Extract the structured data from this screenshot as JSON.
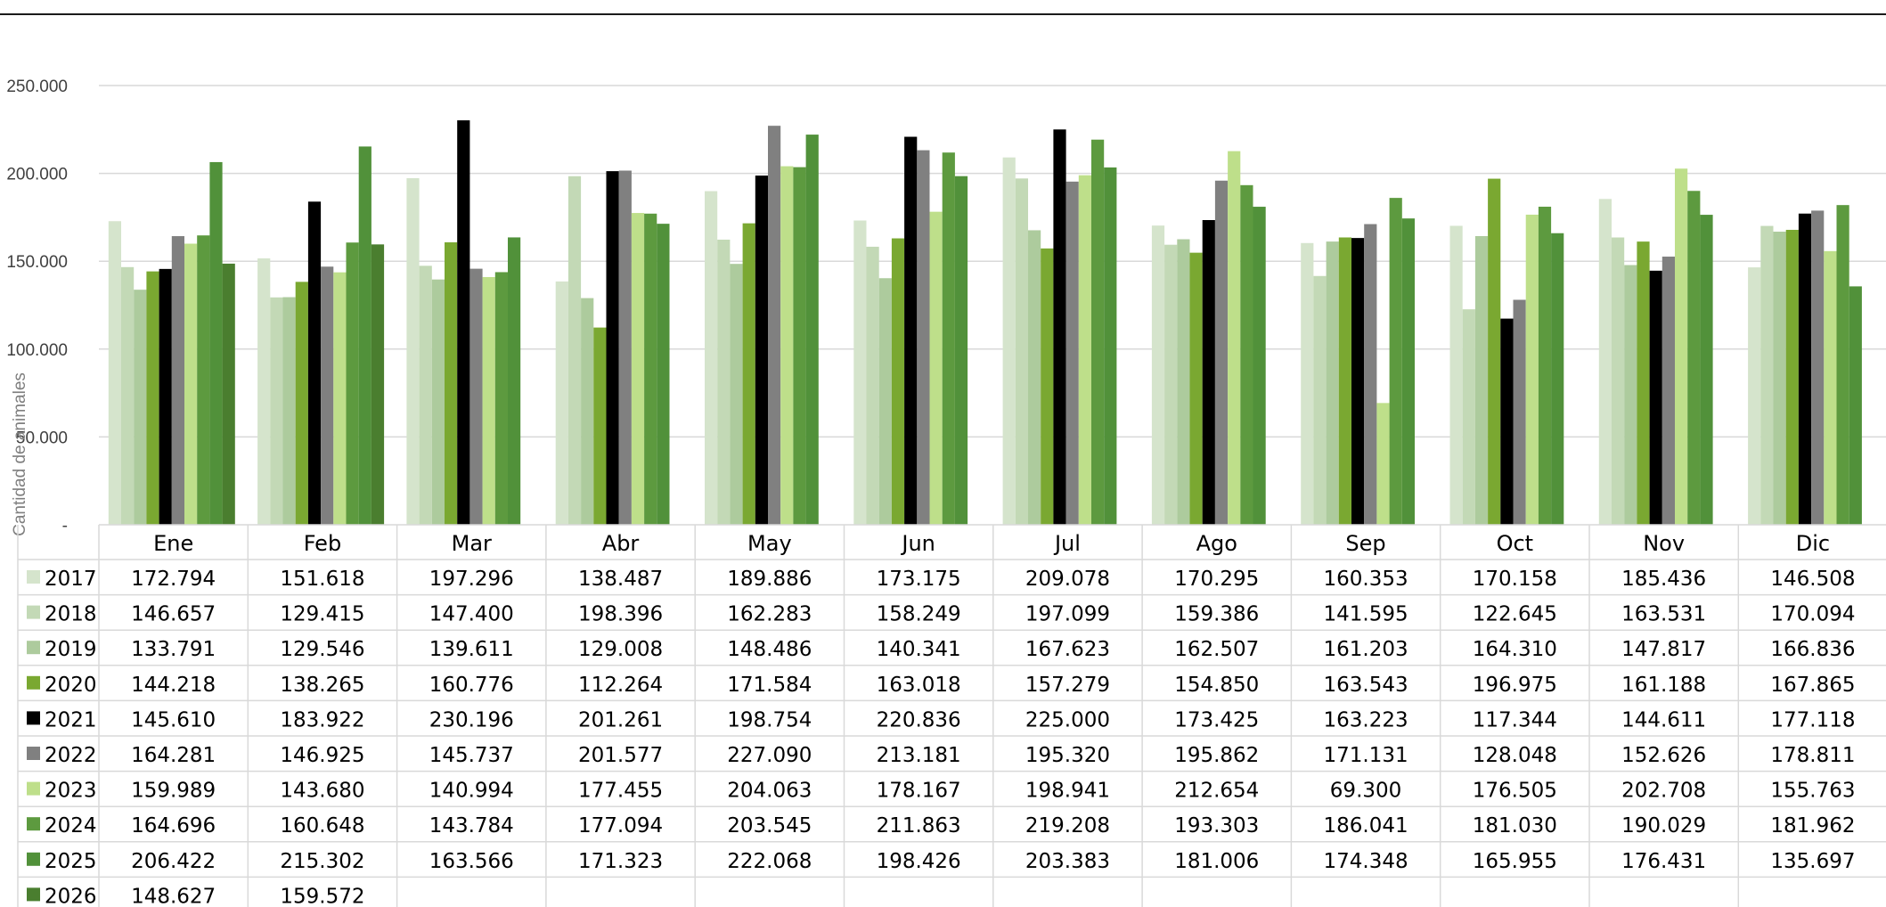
{
  "colors": {
    "2017": "#d5e4cc",
    "2018": "#c3d9b6",
    "2019": "#adcb9d",
    "2020": "#7aa831",
    "2021": "#000000",
    "2022": "#808080",
    "2023": "#bedf8a",
    "2024": "#5d9a3f",
    "2025": "#51913a",
    "2026": "#4a7e2f",
    "grid": "#d9d9d9",
    "table_border": "#d9d9d9"
  },
  "chart_data": {
    "type": "bar",
    "categories": [
      "Ene",
      "Feb",
      "Mar",
      "Abr",
      "May",
      "Jun",
      "Jul",
      "Ago",
      "Sep",
      "Oct",
      "Nov",
      "Dic"
    ],
    "ylabel": "Cantidad de animales",
    "ylim": [
      0,
      250000
    ],
    "yticks": [
      0,
      50000,
      100000,
      150000,
      200000,
      250000
    ],
    "ytick_labels": [
      "-",
      "50.000",
      "100.000",
      "150.000",
      "200.000",
      "250.000"
    ],
    "grid": true,
    "legend": "data-table",
    "series": [
      {
        "name": "2017",
        "values": [
          172794,
          151618,
          197296,
          138487,
          189886,
          173175,
          209078,
          170295,
          160353,
          170158,
          185436,
          146508
        ],
        "labels": [
          "172.794",
          "151.618",
          "197.296",
          "138.487",
          "189.886",
          "173.175",
          "209.078",
          "170.295",
          "160.353",
          "170.158",
          "185.436",
          "146.508"
        ]
      },
      {
        "name": "2018",
        "values": [
          146657,
          129415,
          147400,
          198396,
          162283,
          158249,
          197099,
          159386,
          141595,
          122645,
          163531,
          170094
        ],
        "labels": [
          "146.657",
          "129.415",
          "147.400",
          "198.396",
          "162.283",
          "158.249",
          "197.099",
          "159.386",
          "141.595",
          "122.645",
          "163.531",
          "170.094"
        ]
      },
      {
        "name": "2019",
        "values": [
          133791,
          129546,
          139611,
          129008,
          148486,
          140341,
          167623,
          162507,
          161203,
          164310,
          147817,
          166836
        ],
        "labels": [
          "133.791",
          "129.546",
          "139.611",
          "129.008",
          "148.486",
          "140.341",
          "167.623",
          "162.507",
          "161.203",
          "164.310",
          "147.817",
          "166.836"
        ]
      },
      {
        "name": "2020",
        "values": [
          144218,
          138265,
          160776,
          112264,
          171584,
          163018,
          157279,
          154850,
          163543,
          196975,
          161188,
          167865
        ],
        "labels": [
          "144.218",
          "138.265",
          "160.776",
          "112.264",
          "171.584",
          "163.018",
          "157.279",
          "154.850",
          "163.543",
          "196.975",
          "161.188",
          "167.865"
        ]
      },
      {
        "name": "2021",
        "values": [
          145610,
          183922,
          230196,
          201261,
          198754,
          220836,
          225000,
          173425,
          163223,
          117344,
          144611,
          177118
        ],
        "labels": [
          "145.610",
          "183.922",
          "230.196",
          "201.261",
          "198.754",
          "220.836",
          "225.000",
          "173.425",
          "163.223",
          "117.344",
          "144.611",
          "177.118"
        ]
      },
      {
        "name": "2022",
        "values": [
          164281,
          146925,
          145737,
          201577,
          227090,
          213181,
          195320,
          195862,
          171131,
          128048,
          152626,
          178811
        ],
        "labels": [
          "164.281",
          "146.925",
          "145.737",
          "201.577",
          "227.090",
          "213.181",
          "195.320",
          "195.862",
          "171.131",
          "128.048",
          "152.626",
          "178.811"
        ]
      },
      {
        "name": "2023",
        "values": [
          159989,
          143680,
          140994,
          177455,
          204063,
          178167,
          198941,
          212654,
          69300,
          176505,
          202708,
          155763
        ],
        "labels": [
          "159.989",
          "143.680",
          "140.994",
          "177.455",
          "204.063",
          "178.167",
          "198.941",
          "212.654",
          "69.300",
          "176.505",
          "202.708",
          "155.763"
        ]
      },
      {
        "name": "2024",
        "values": [
          164696,
          160648,
          143784,
          177094,
          203545,
          211863,
          219208,
          193303,
          186041,
          181030,
          190029,
          181962
        ],
        "labels": [
          "164.696",
          "160.648",
          "143.784",
          "177.094",
          "203.545",
          "211.863",
          "219.208",
          "193.303",
          "186.041",
          "181.030",
          "190.029",
          "181.962"
        ]
      },
      {
        "name": "2025",
        "values": [
          206422,
          215302,
          163566,
          171323,
          222068,
          198426,
          203383,
          181006,
          174348,
          165955,
          176431,
          135697
        ],
        "labels": [
          "206.422",
          "215.302",
          "163.566",
          "171.323",
          "222.068",
          "198.426",
          "203.383",
          "181.006",
          "174.348",
          "165.955",
          "176.431",
          "135.697"
        ]
      },
      {
        "name": "2026",
        "values": [
          148627,
          159572,
          null,
          null,
          null,
          null,
          null,
          null,
          null,
          null,
          null,
          null
        ],
        "labels": [
          "148.627",
          "159.572",
          "",
          "",
          "",
          "",
          "",
          "",
          "",
          "",
          "",
          ""
        ]
      }
    ]
  }
}
